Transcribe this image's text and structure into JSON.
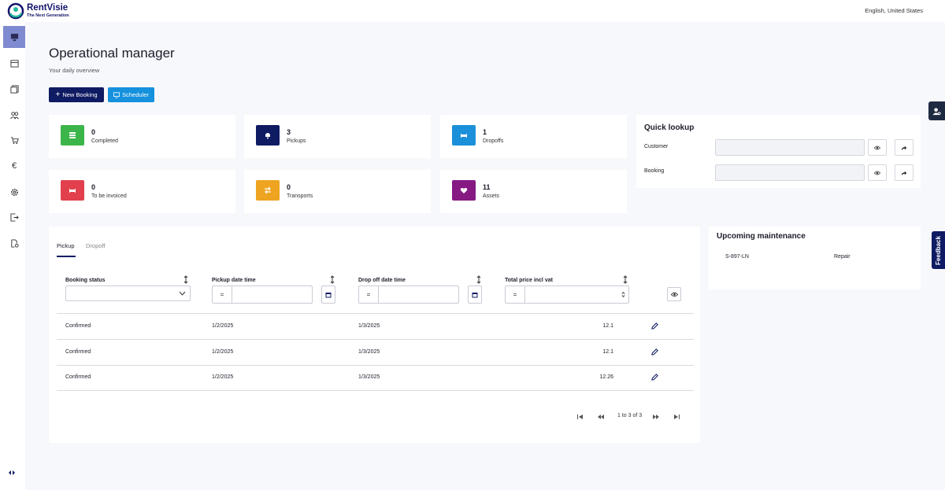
{
  "app": {
    "name": "RentVisie",
    "tagline": "The Next Generation",
    "language": "English, United States"
  },
  "sidebar": {
    "items": [
      {
        "icon": "dashboard-icon",
        "active": true
      },
      {
        "icon": "calendar-icon"
      },
      {
        "icon": "documents-icon"
      },
      {
        "icon": "users-icon"
      },
      {
        "icon": "cart-icon"
      },
      {
        "icon": "euro-icon",
        "glyph": "€"
      },
      {
        "icon": "settings-icon"
      },
      {
        "icon": "logout-icon"
      },
      {
        "icon": "file-settings-icon"
      }
    ]
  },
  "page": {
    "title": "Operational manager",
    "subtitle": "Your daily overview"
  },
  "actions": {
    "new_booking": "New Booking",
    "scheduler": "Scheduler"
  },
  "stats": [
    {
      "value": "0",
      "label": "Completed",
      "color": "#3bb54a",
      "icon": "list-icon"
    },
    {
      "value": "3",
      "label": "Pickups",
      "color": "#0f1b62",
      "icon": "bell-icon"
    },
    {
      "value": "1",
      "label": "Dropoffs",
      "color": "#1b8fd9",
      "icon": "bed-icon"
    },
    {
      "value": "0",
      "label": "To be invoiced",
      "color": "#e2404d",
      "icon": "bed-icon"
    },
    {
      "value": "0",
      "label": "Transports",
      "color": "#eea420",
      "icon": "swap-icon"
    },
    {
      "value": "11",
      "label": "Assets",
      "color": "#861a82",
      "icon": "heart-icon"
    }
  ],
  "quick_lookup": {
    "title": "Quick lookup",
    "customer_label": "Customer",
    "booking_label": "Booking"
  },
  "bookings": {
    "tabs": [
      "Pickup",
      "Dropoff"
    ],
    "columns": [
      "Booking status",
      "Pickup date time",
      "Drop off date time",
      "Total price incl vat"
    ],
    "filter_eq": "=",
    "rows": [
      {
        "status": "Confirmed",
        "pickup": "1/2/2025",
        "dropoff": "1/3/2025",
        "price": "12.1"
      },
      {
        "status": "Confirmed",
        "pickup": "1/2/2025",
        "dropoff": "1/3/2025",
        "price": "12.1"
      },
      {
        "status": "Confirmed",
        "pickup": "1/2/2025",
        "dropoff": "1/3/2025",
        "price": "12.26"
      }
    ],
    "pagination": "1 to 3 of 3"
  },
  "maintenance": {
    "title": "Upcoming maintenance",
    "items": [
      {
        "asset": "S-897-LN",
        "type": "Repair"
      }
    ]
  },
  "feedback_label": "Feedback"
}
